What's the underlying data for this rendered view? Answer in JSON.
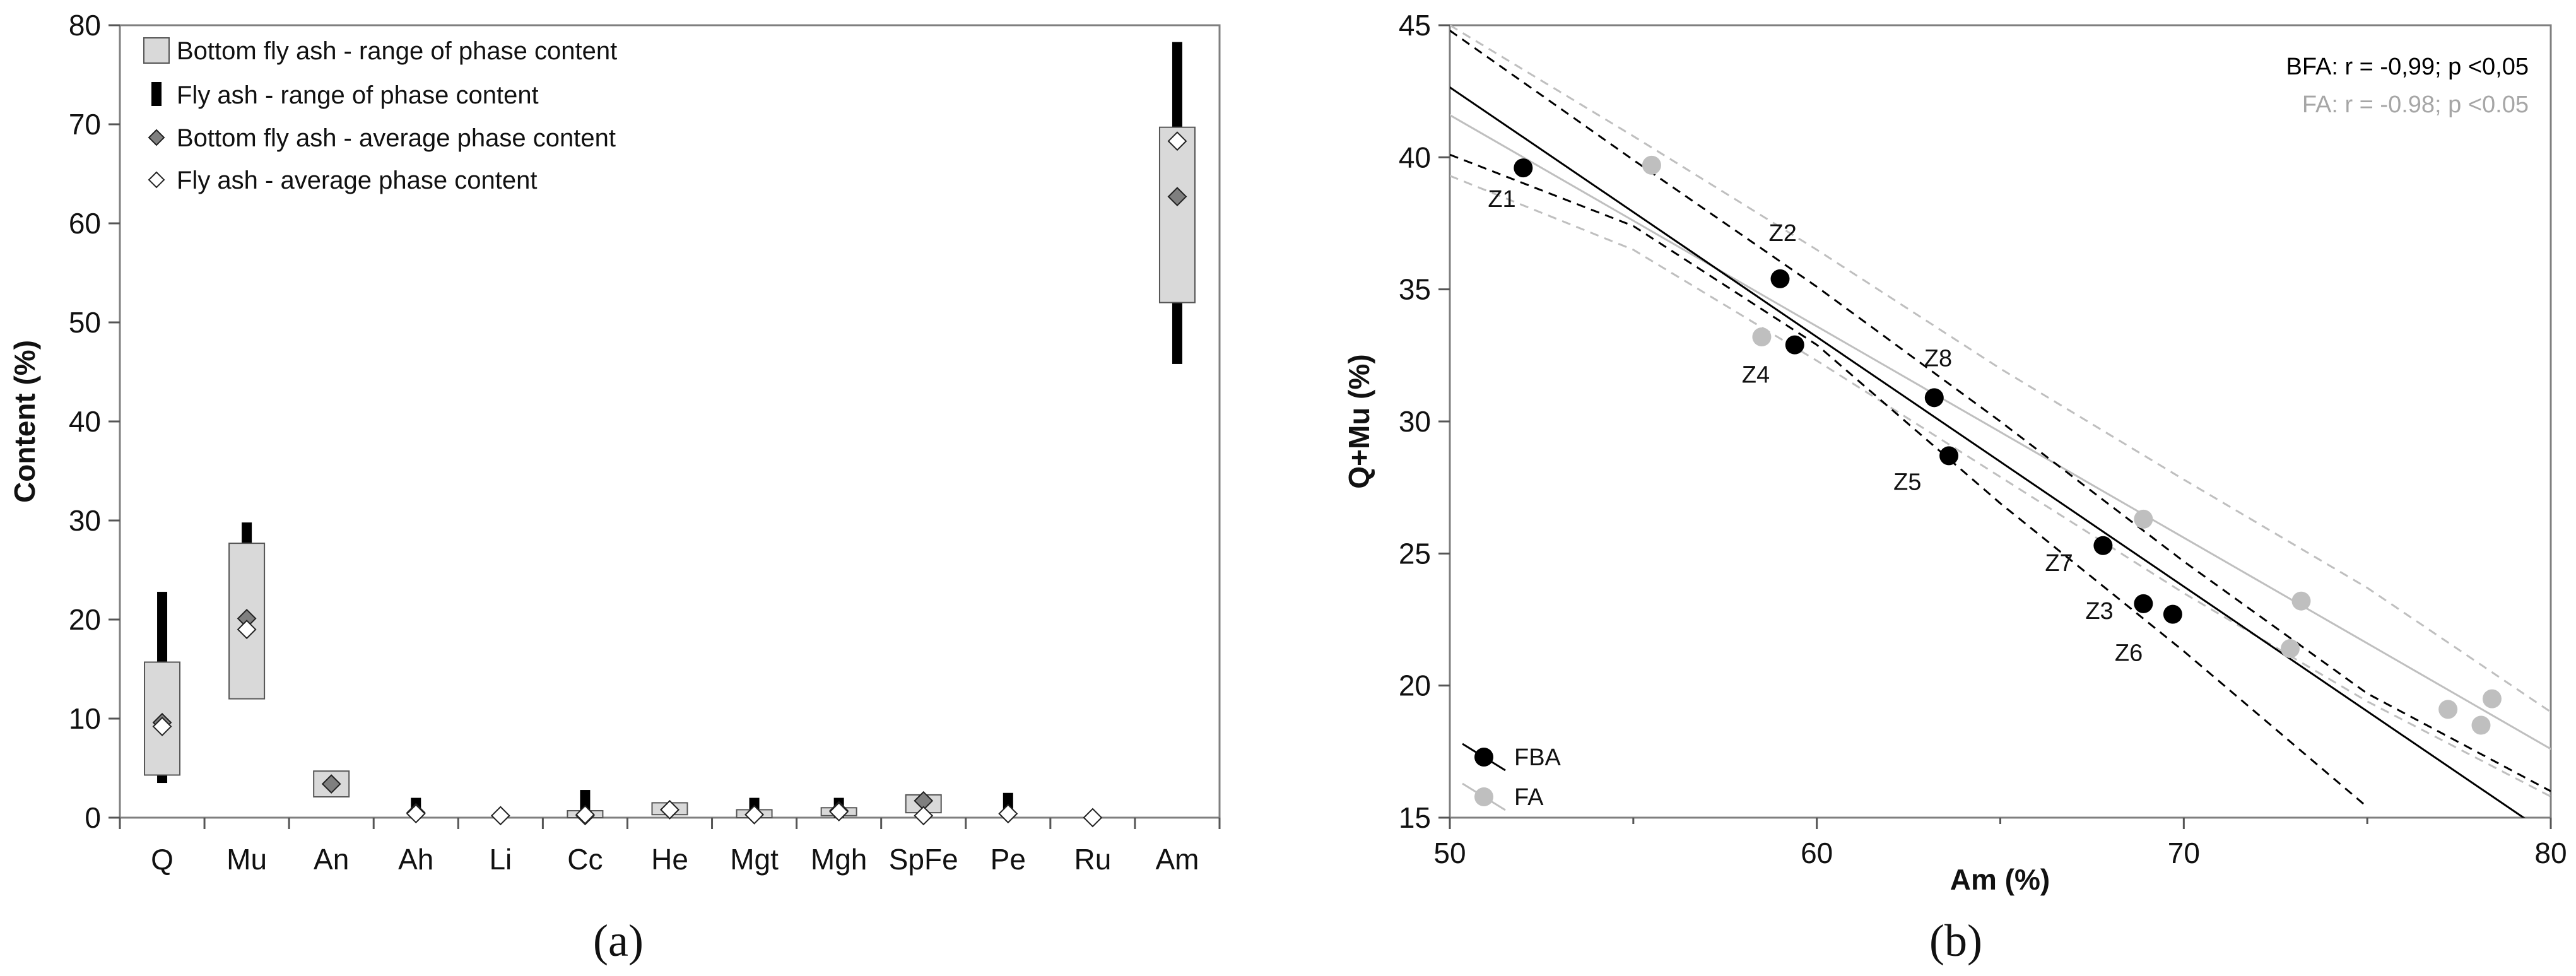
{
  "chart_data": [
    {
      "type": "bar",
      "panel_label": "(a)",
      "ylabel": "Content (%)",
      "xlabel": "",
      "ylim": [
        0,
        80
      ],
      "yticks": [
        0,
        10,
        20,
        30,
        40,
        50,
        60,
        70,
        80
      ],
      "grid": false,
      "legend_position": "top-left",
      "categories": [
        "Q",
        "Mu",
        "An",
        "Ah",
        "Li",
        "Cc",
        "He",
        "Mgt",
        "Mgh",
        "SpFe",
        "Pe",
        "Ru",
        "Am"
      ],
      "series": [
        {
          "name": "Bottom fly ash - range of phase content",
          "color": "#d9d9d9",
          "ranges": [
            [
              4.3,
              15.7
            ],
            [
              12.0,
              27.7
            ],
            [
              2.1,
              4.7
            ],
            null,
            null,
            [
              0,
              0.7
            ],
            [
              0.3,
              1.5
            ],
            [
              0,
              0.8
            ],
            [
              0.2,
              1.0
            ],
            [
              0.5,
              2.3
            ],
            null,
            null,
            [
              52.0,
              69.7
            ]
          ]
        },
        {
          "name": "Fly ash - range of phase content",
          "color": "#000000",
          "ranges": [
            [
              3.5,
              22.8
            ],
            [
              27.7,
              29.8
            ],
            null,
            [
              0,
              2.0
            ],
            [
              0,
              0.5
            ],
            [
              0,
              2.8
            ],
            null,
            [
              0,
              2.0
            ],
            [
              0,
              2.0
            ],
            null,
            [
              0,
              2.5
            ],
            null,
            [
              45.8,
              78.3
            ]
          ]
        },
        {
          "name": "Bottom fly ash - average phase content",
          "color": "#7f7f7f",
          "values": [
            9.6,
            20.1,
            3.4,
            0.5,
            null,
            0.2,
            0.8,
            0.3,
            0.7,
            1.7,
            0.4,
            null,
            62.7
          ]
        },
        {
          "name": "Fly ash - average phase content",
          "color": "#ffffff",
          "values": [
            9.2,
            19.0,
            null,
            0.4,
            0.2,
            0.3,
            0.8,
            0.3,
            0.6,
            0.2,
            0.4,
            0.0,
            68.3
          ]
        }
      ]
    },
    {
      "type": "scatter",
      "panel_label": "(b)",
      "xlabel": "Am (%)",
      "ylabel": "Q+Mu (%)",
      "xlim": [
        50,
        80
      ],
      "ylim": [
        15,
        45
      ],
      "xticks": [
        50,
        60,
        70,
        80
      ],
      "yticks": [
        15,
        20,
        25,
        30,
        35,
        40,
        45
      ],
      "grid": false,
      "legend_position": "bottom-left",
      "annotations": [
        {
          "text": "BFA: r = -0,99; p <0,05",
          "color": "#000000"
        },
        {
          "text": "FA:   r = -0.98; p <0.05",
          "color": "#a6a6a6"
        }
      ],
      "series": [
        {
          "name": "FBA",
          "color": "#000000",
          "points": [
            {
              "label": "Z1",
              "x": 52.0,
              "y": 39.6
            },
            {
              "label": "Z2",
              "x": 59.0,
              "y": 35.4
            },
            {
              "label": "Z4",
              "x": 59.4,
              "y": 32.9
            },
            {
              "label": "Z8",
              "x": 63.2,
              "y": 30.9
            },
            {
              "label": "Z5",
              "x": 63.6,
              "y": 28.7
            },
            {
              "label": "Z7",
              "x": 67.8,
              "y": 25.3
            },
            {
              "label": "Z3",
              "x": 68.9,
              "y": 23.1
            },
            {
              "label": "Z6",
              "x": 69.7,
              "y": 22.7
            }
          ],
          "fit": {
            "slope": -0.945,
            "intercept": 89.9
          },
          "ci95_upper": [
            [
              50,
              44.8
            ],
            [
              55,
              39.9
            ],
            [
              60,
              35.1
            ],
            [
              65,
              30.0
            ],
            [
              70,
              24.7
            ],
            [
              75,
              19.7
            ],
            [
              80,
              16.0
            ]
          ],
          "ci95_lower": [
            [
              50,
              40.1
            ],
            [
              55,
              37.4
            ],
            [
              60,
              32.9
            ],
            [
              65,
              26.9
            ],
            [
              70,
              21.3
            ],
            [
              75,
              15.4
            ]
          ]
        },
        {
          "name": "FA",
          "color": "#bfbfbf",
          "points": [
            {
              "x": 55.5,
              "y": 39.7
            },
            {
              "x": 58.5,
              "y": 33.2
            },
            {
              "x": 68.9,
              "y": 26.3
            },
            {
              "x": 73.2,
              "y": 23.2
            },
            {
              "x": 72.9,
              "y": 21.4
            },
            {
              "x": 77.2,
              "y": 19.1
            },
            {
              "x": 78.4,
              "y": 19.5
            },
            {
              "x": 78.1,
              "y": 18.5
            }
          ],
          "fit": {
            "slope": -0.8,
            "intercept": 81.6
          },
          "ci95_upper": [
            [
              50,
              45.0
            ],
            [
              55,
              40.8
            ],
            [
              60,
              36.5
            ],
            [
              65,
              32.0
            ],
            [
              70,
              27.8
            ],
            [
              75,
              23.7
            ],
            [
              80,
              19.0
            ]
          ],
          "ci95_lower": [
            [
              50,
              39.3
            ],
            [
              55,
              36.5
            ],
            [
              60,
              32.3
            ],
            [
              65,
              27.9
            ],
            [
              70,
              23.5
            ],
            [
              75,
              19.4
            ],
            [
              80,
              15.8
            ]
          ]
        }
      ]
    }
  ]
}
